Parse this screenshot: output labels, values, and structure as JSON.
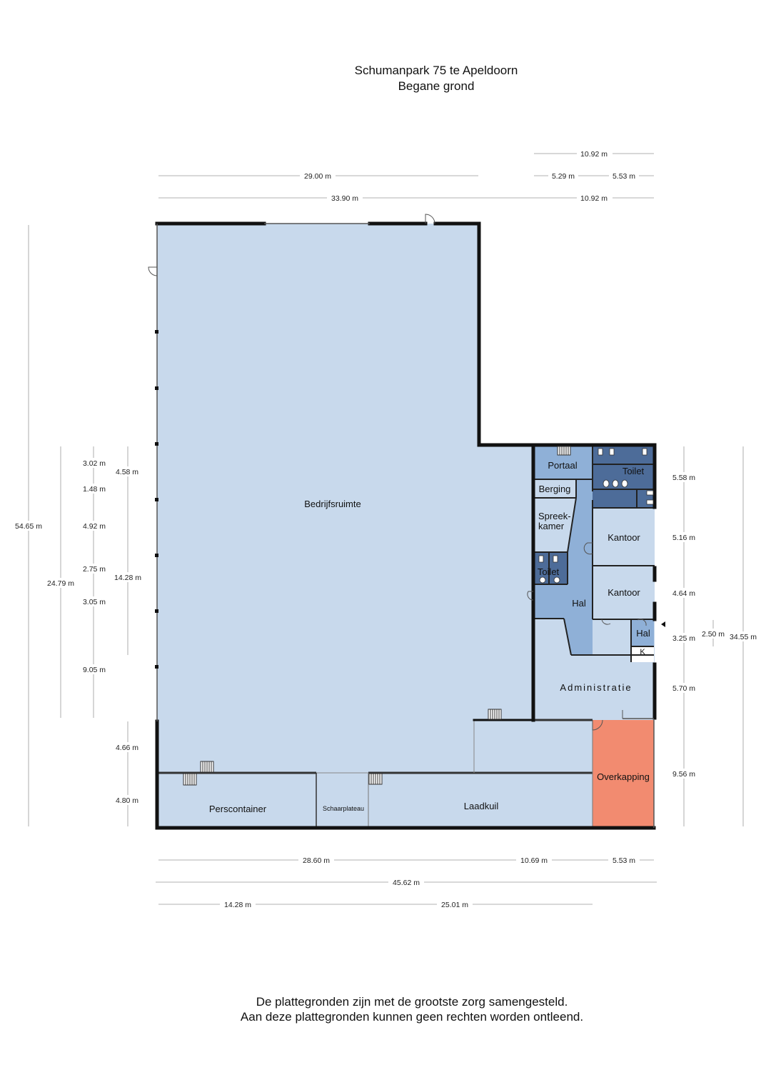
{
  "header": {
    "title": "Schumanpark 75 te Apeldoorn",
    "subtitle": "Begane grond"
  },
  "footer": {
    "line1": "De plattegronden zijn met de grootste zorg samengesteld.",
    "line2": "Aan deze plattegronden kunnen geen rechten worden ontleend."
  },
  "rooms": {
    "bedrijfsruimte": "Bedrijfsruimte",
    "portaal": "Portaal",
    "toilet_right": "Toilet",
    "berging": "Berging",
    "spreek1": "Spreek-",
    "spreek2": "kamer",
    "kantoor_top": "Kantoor",
    "toilet_left": "Toilet",
    "kantoor_bottom": "Kantoor",
    "hal_left": "Hal",
    "hal_right": "Hal",
    "k": "K",
    "administratie": "Administratie",
    "overkapping": "Overkapping",
    "perscontainer": "Perscontainer",
    "schaarplateau": "Schaarplateau",
    "laadkuil": "Laadkuil"
  },
  "dims": {
    "top_1092a": "10.92 m",
    "top_2900": "29.00 m",
    "top_529": "5.29 m",
    "top_553": "5.53 m",
    "top_3390": "33.90 m",
    "top_1092b": "10.92 m",
    "left_5465": "54.65 m",
    "left_302": "3.02 m",
    "left_148": "1.48 m",
    "left_492": "4.92 m",
    "left_275": "2.75 m",
    "left_305": "3.05 m",
    "left_905": "9.05 m",
    "left_2479": "24.79 m",
    "left_458": "4.58 m",
    "left_1428": "14.28 m",
    "left_466": "4.66 m",
    "left_480": "4.80 m",
    "right_558": "5.58 m",
    "right_516": "5.16 m",
    "right_464": "4.64 m",
    "right_325": "3.25 m",
    "right_250": "2.50 m",
    "right_3455": "34.55 m",
    "right_570": "5.70 m",
    "right_956": "9.56 m",
    "bot_2860": "28.60 m",
    "bot_1069": "10.69 m",
    "bot_553": "5.53 m",
    "bot_4562": "45.62 m",
    "bot_1428": "14.28 m",
    "bot_2501": "25.01 m"
  },
  "colors": {
    "floor": "#c8d9ec",
    "corridor": "#8fb0d7",
    "toilet": "#4d6c99",
    "overkapping": "#f28b70",
    "wall": "#111111"
  }
}
